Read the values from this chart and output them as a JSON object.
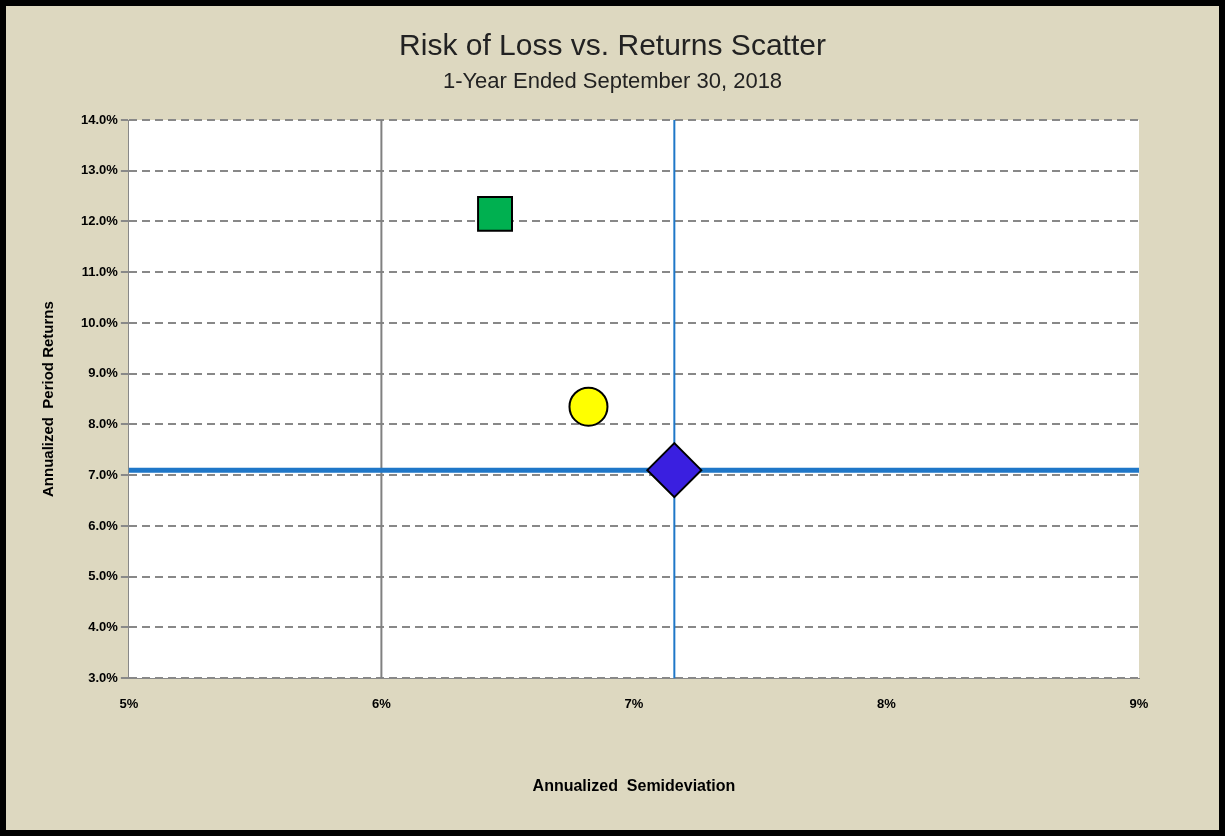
{
  "chart_data": {
    "type": "scatter",
    "title": "Risk of Loss vs. Returns Scatter",
    "subtitle": "1-Year Ended September 30, 2018",
    "xlabel": "Annualized  Semideviation",
    "ylabel": "Annualized  Period Returns",
    "xlim": [
      5,
      9
    ],
    "xticks": [
      {
        "value": 5,
        "label": "5%"
      },
      {
        "value": 6,
        "label": "6%"
      },
      {
        "value": 7,
        "label": "7%"
      },
      {
        "value": 8,
        "label": "8%"
      },
      {
        "value": 9,
        "label": "9%"
      }
    ],
    "ylim": [
      3,
      14
    ],
    "yticks": [
      {
        "value": 3,
        "label": "3.0%"
      },
      {
        "value": 4,
        "label": "4.0%"
      },
      {
        "value": 5,
        "label": "5.0%"
      },
      {
        "value": 6,
        "label": "6.0%"
      },
      {
        "value": 7,
        "label": "7.0%"
      },
      {
        "value": 8,
        "label": "8.0%"
      },
      {
        "value": 9,
        "label": "9.0%"
      },
      {
        "value": 10,
        "label": "10.0%"
      },
      {
        "value": 11,
        "label": "11.0%"
      },
      {
        "value": 12,
        "label": "12.0%"
      },
      {
        "value": 13,
        "label": "13.0%"
      },
      {
        "value": 14,
        "label": "14.0%"
      }
    ],
    "grid": "y",
    "legend": false,
    "ref_lines": [
      {
        "axis": "x",
        "value": 6,
        "color": "#808080"
      },
      {
        "axis": "x",
        "value": 7.16,
        "color": "#1f77c8"
      },
      {
        "axis": "y",
        "value": 7.1,
        "color": "#1f77c8"
      }
    ],
    "series": [
      {
        "color": "#00b050",
        "marker": "square",
        "x": [
          6.45
        ],
        "values": [
          12.15
        ]
      },
      {
        "color": "#ffff00",
        "marker": "circle",
        "x": [
          6.82
        ],
        "values": [
          8.35
        ]
      },
      {
        "color": "#3a1fe0",
        "marker": "diamond",
        "x": [
          7.16
        ],
        "values": [
          7.1
        ]
      }
    ]
  }
}
